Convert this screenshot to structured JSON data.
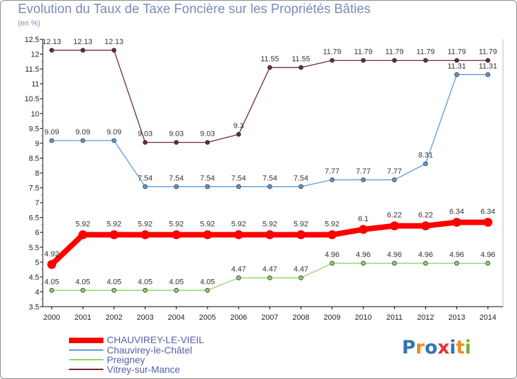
{
  "chart_data": {
    "type": "line",
    "title": "Evolution du Taux de Taxe Foncière sur les Propriétés Bâties",
    "ylabel": "(en %)",
    "xlabel": "",
    "ylim": [
      3.5,
      12.5
    ],
    "ytick_step": 0.5,
    "yticks": [
      "3.5",
      "4",
      "4.5",
      "5",
      "5.5",
      "6",
      "6.5",
      "7",
      "7.5",
      "8",
      "8.5",
      "9",
      "9.5",
      "10",
      "10.5",
      "11",
      "11.5",
      "12",
      "12.5"
    ],
    "categories": [
      "2000",
      "2001",
      "2002",
      "2003",
      "2004",
      "2005",
      "2006",
      "2007",
      "2008",
      "2009",
      "2010",
      "2011",
      "2012",
      "2013",
      "2014"
    ],
    "grid": false,
    "series": [
      {
        "name": "Vitrey-sur-Mance",
        "color": "#6b2a2a",
        "values": [
          12.13,
          12.13,
          12.13,
          9.03,
          9.03,
          9.03,
          9.3,
          11.55,
          11.55,
          11.79,
          11.79,
          11.79,
          11.79,
          11.79,
          11.79
        ],
        "labels": [
          "12.13",
          "12.13",
          "12.13",
          "9.03",
          "9.03",
          "9.03",
          "9.3",
          "11.55",
          "11.55",
          "11.79",
          "11.79",
          "11.79",
          "11.79",
          "11.79",
          "11.79"
        ]
      },
      {
        "name": "Chauvirey-le-Châtel",
        "color": "#5b9bd5",
        "values": [
          9.09,
          9.09,
          9.09,
          7.54,
          7.54,
          7.54,
          7.54,
          7.54,
          7.54,
          7.77,
          7.77,
          7.77,
          8.31,
          11.31,
          11.31
        ],
        "labels": [
          "9.09",
          "9.09",
          "9.09",
          "7.54",
          "7.54",
          "7.54",
          "7.54",
          "7.54",
          "7.54",
          "7.77",
          "7.77",
          "7.77",
          "8.31",
          "11.31",
          "11.31"
        ]
      },
      {
        "name": "Preigney",
        "color": "#8ed46a",
        "values": [
          4.05,
          4.05,
          4.05,
          4.05,
          4.05,
          4.05,
          4.47,
          4.47,
          4.47,
          4.96,
          4.96,
          4.96,
          4.96,
          4.96,
          4.96
        ],
        "labels": [
          "4.05",
          "4.05",
          "4.05",
          "4.05",
          "4.05",
          "4.05",
          "4.47",
          "4.47",
          "4.47",
          "4.96",
          "4.96",
          "4.96",
          "4.96",
          "4.96",
          "4.96"
        ]
      },
      {
        "name": "CHAUVIREY-LE-VIEIL",
        "color": "#ff0000",
        "values": [
          4.92,
          5.92,
          5.92,
          5.92,
          5.92,
          5.92,
          5.92,
          5.92,
          5.92,
          5.92,
          6.1,
          6.22,
          6.22,
          6.34,
          6.34
        ],
        "labels": [
          "4.92",
          "5.92",
          "5.92",
          "5.92",
          "5.92",
          "5.92",
          "5.92",
          "5.92",
          "5.92",
          "5.92",
          "6.1",
          "6.22",
          "6.22",
          "6.34",
          "6.34"
        ]
      }
    ],
    "legend": [
      "CHAUVIREY-LE-VIEIL",
      "Chauvirey-le-Châtel",
      "Preigney",
      "Vitrey-sur-Mance"
    ],
    "legend_position": "bottom-left"
  },
  "logo": {
    "letters": [
      "P",
      "r",
      "o",
      "x",
      "i",
      "t",
      "i"
    ],
    "colors": [
      "#2e75b6",
      "#f08a24",
      "#2e75b6",
      "#e3342f",
      "#2e75b6",
      "#f08a24",
      "#70b62c"
    ]
  }
}
